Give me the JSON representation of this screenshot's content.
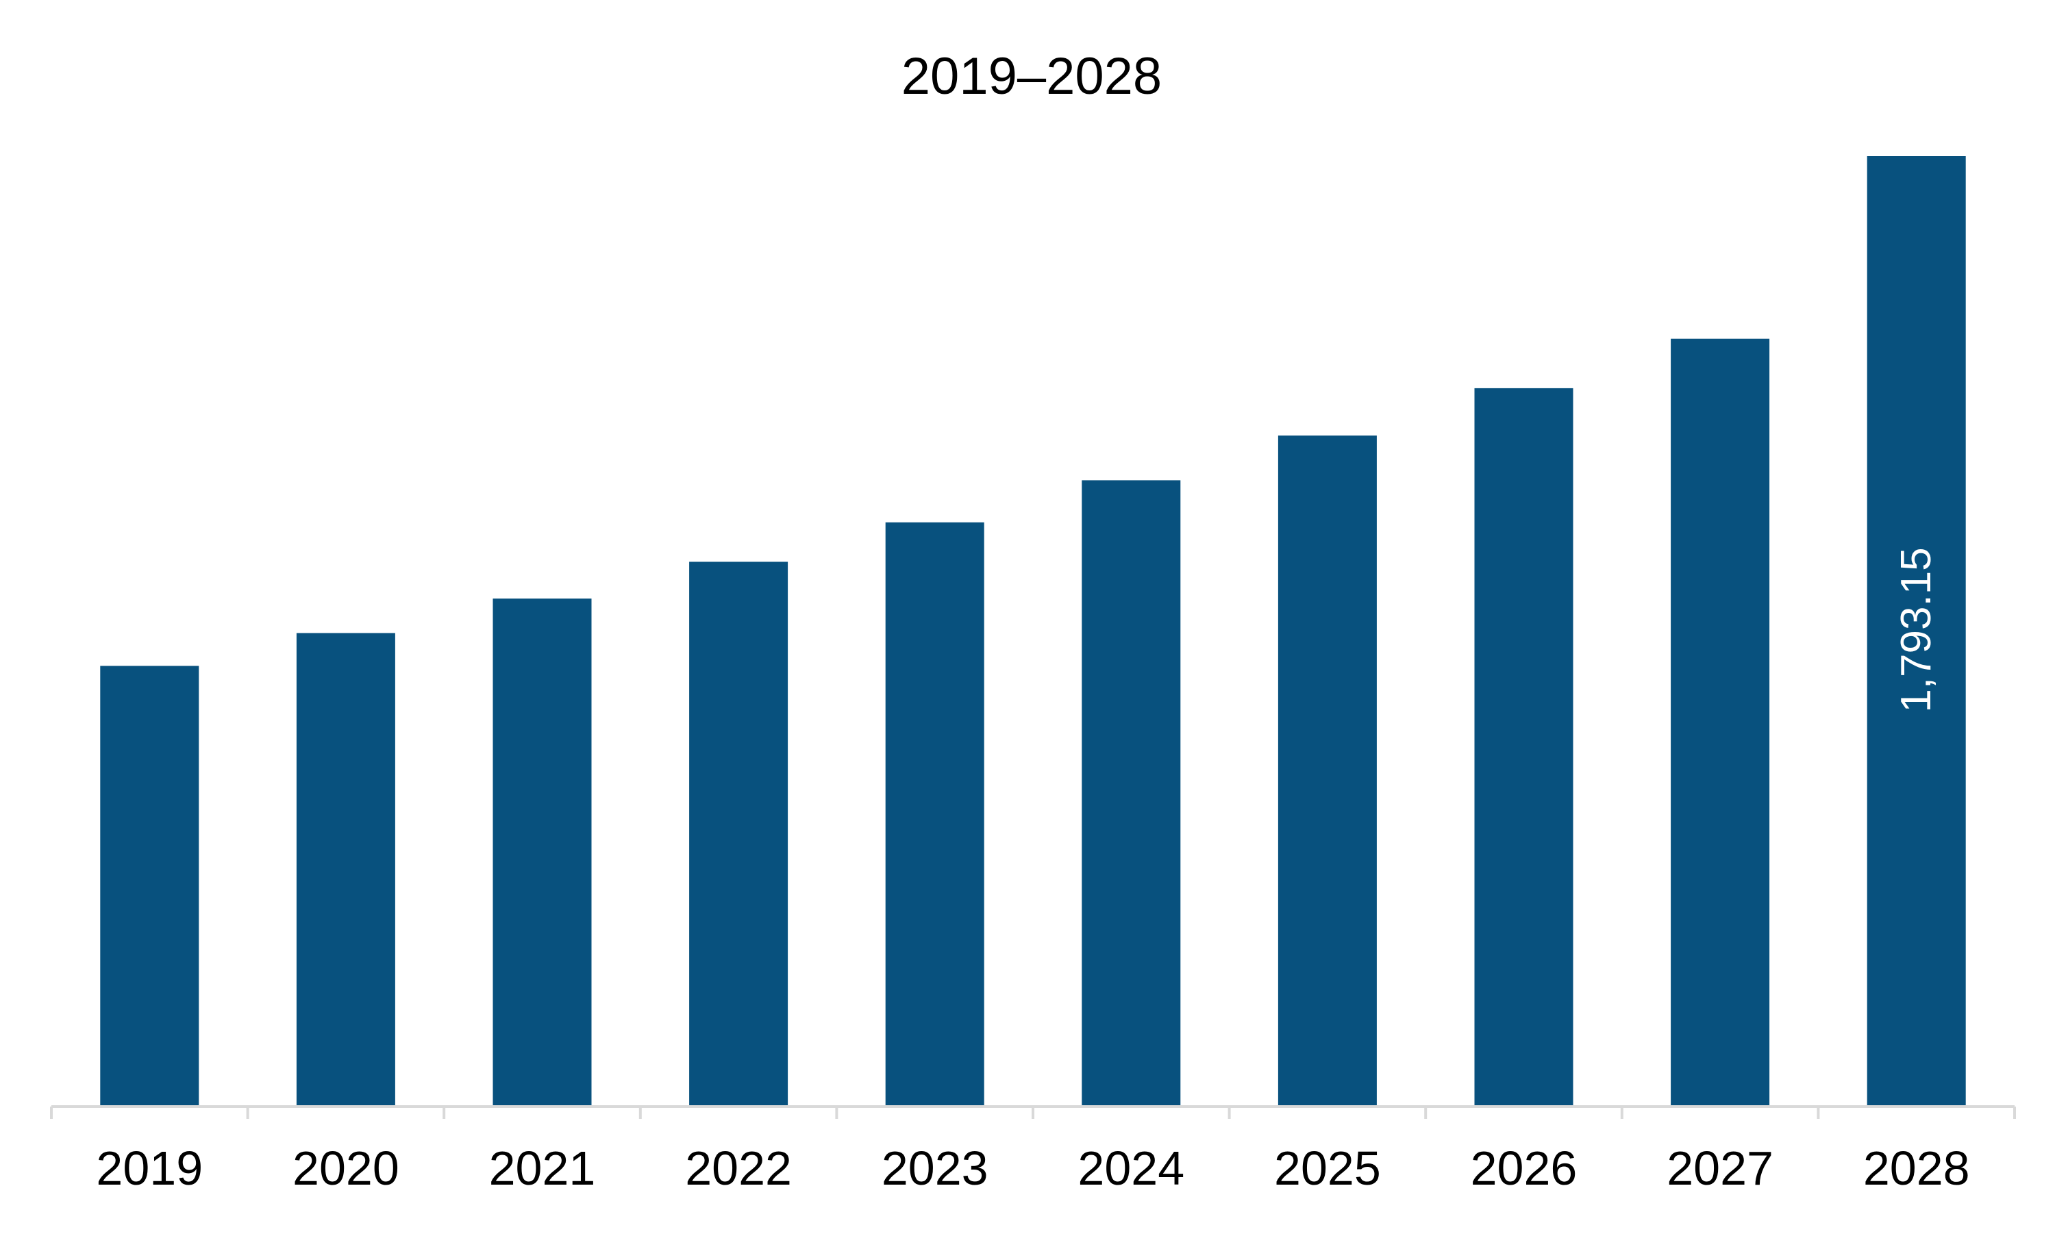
{
  "chart_data": {
    "type": "bar",
    "title": "2019–2028",
    "xlabel": "",
    "ylabel": "",
    "categories": [
      "2019",
      "2020",
      "2021",
      "2022",
      "2023",
      "2024",
      "2025",
      "2026",
      "2027",
      "2028"
    ],
    "values": [
      831.4,
      893.4,
      958.4,
      1027.8,
      1102.2,
      1181.6,
      1266.0,
      1355.3,
      1448.6,
      1793.15
    ],
    "data_labels": [
      {
        "category": "2028",
        "text": "1,793.15"
      }
    ],
    "ylim": [
      0,
      1793.15
    ],
    "grid": false,
    "legend": "none",
    "colors": {
      "bar": "#08517e",
      "axis": "#d9d9d9",
      "text": "#000000",
      "data_label": "#ffffff"
    }
  }
}
